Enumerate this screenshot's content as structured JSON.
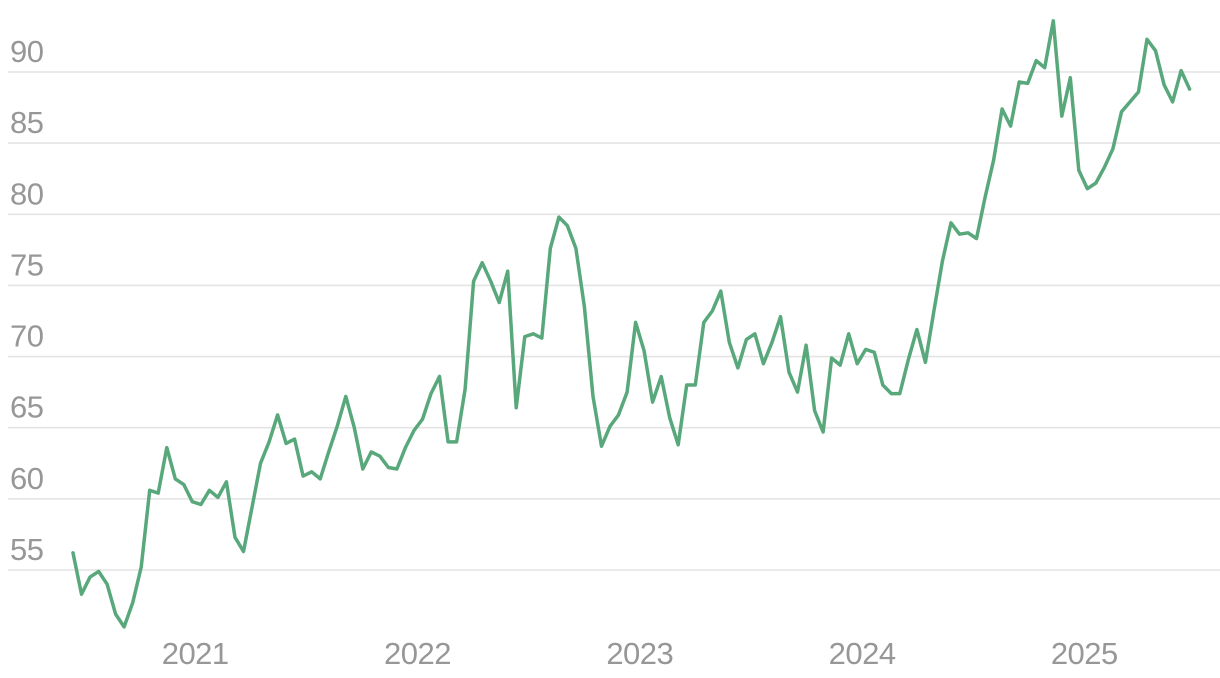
{
  "page": {
    "title": "",
    "background": "#ffffff"
  },
  "chart_data": {
    "type": "line",
    "title": "",
    "subtitle": "",
    "legend": "none",
    "grid": "horizontal-only",
    "colors": {
      "line": "#58a87c",
      "gridline": "#e4e4e4",
      "tick_text": "#979797",
      "background": "#ffffff"
    },
    "x_axis": {
      "label": "",
      "tick_labels": [
        "2021",
        "2022",
        "2023",
        "2024",
        "2025"
      ],
      "tick_years": [
        2021,
        2022,
        2023,
        2024,
        2025
      ],
      "start_year": 2020.45,
      "end_year": 2025.47,
      "step_years_per_point": 0.03835
    },
    "y_axis": {
      "label": "",
      "tick_labels": [
        "55",
        "60",
        "65",
        "70",
        "75",
        "80",
        "85",
        "90"
      ],
      "tick_values": [
        55,
        60,
        65,
        70,
        75,
        80,
        85,
        90
      ],
      "visible_range": [
        50.4,
        94.3
      ]
    },
    "series": [
      {
        "name": "value",
        "color": "#58a87c",
        "sampling": "bi-weekly (estimated from plot)",
        "values": [
          56.2,
          53.3,
          54.5,
          54.9,
          54.0,
          51.9,
          51.0,
          52.7,
          55.2,
          60.6,
          60.4,
          63.6,
          61.4,
          61.0,
          59.8,
          59.6,
          60.6,
          60.1,
          61.2,
          57.3,
          56.3,
          59.4,
          62.5,
          64.0,
          65.9,
          63.9,
          64.2,
          61.6,
          61.9,
          61.4,
          63.3,
          65.1,
          67.2,
          65.0,
          62.1,
          63.3,
          63.0,
          62.2,
          62.1,
          63.6,
          64.8,
          65.6,
          67.4,
          68.6,
          64.0,
          64.0,
          67.7,
          75.3,
          76.6,
          75.3,
          73.8,
          76.0,
          66.4,
          71.4,
          71.6,
          71.3,
          77.6,
          79.8,
          79.2,
          77.6,
          73.5,
          67.2,
          63.7,
          65.1,
          65.9,
          67.5,
          72.4,
          70.4,
          66.8,
          68.6,
          65.7,
          63.8,
          68.0,
          68.0,
          72.4,
          73.2,
          74.6,
          71.0,
          69.2,
          71.2,
          71.6,
          69.5,
          71.0,
          72.8,
          68.9,
          67.5,
          70.8,
          66.2,
          64.7,
          69.9,
          69.4,
          71.6,
          69.5,
          70.5,
          70.3,
          68.0,
          67.4,
          67.4,
          69.8,
          71.9,
          69.6,
          73.2,
          76.7,
          79.4,
          78.6,
          78.7,
          78.3,
          81.2,
          83.8,
          87.4,
          86.2,
          89.3,
          89.2,
          90.8,
          90.3,
          93.6,
          86.9,
          89.6,
          83.1,
          81.8,
          82.2,
          83.3,
          84.6,
          87.2,
          87.9,
          88.6,
          92.3,
          91.5,
          89.1,
          87.9,
          90.1,
          88.8
        ]
      }
    ]
  }
}
